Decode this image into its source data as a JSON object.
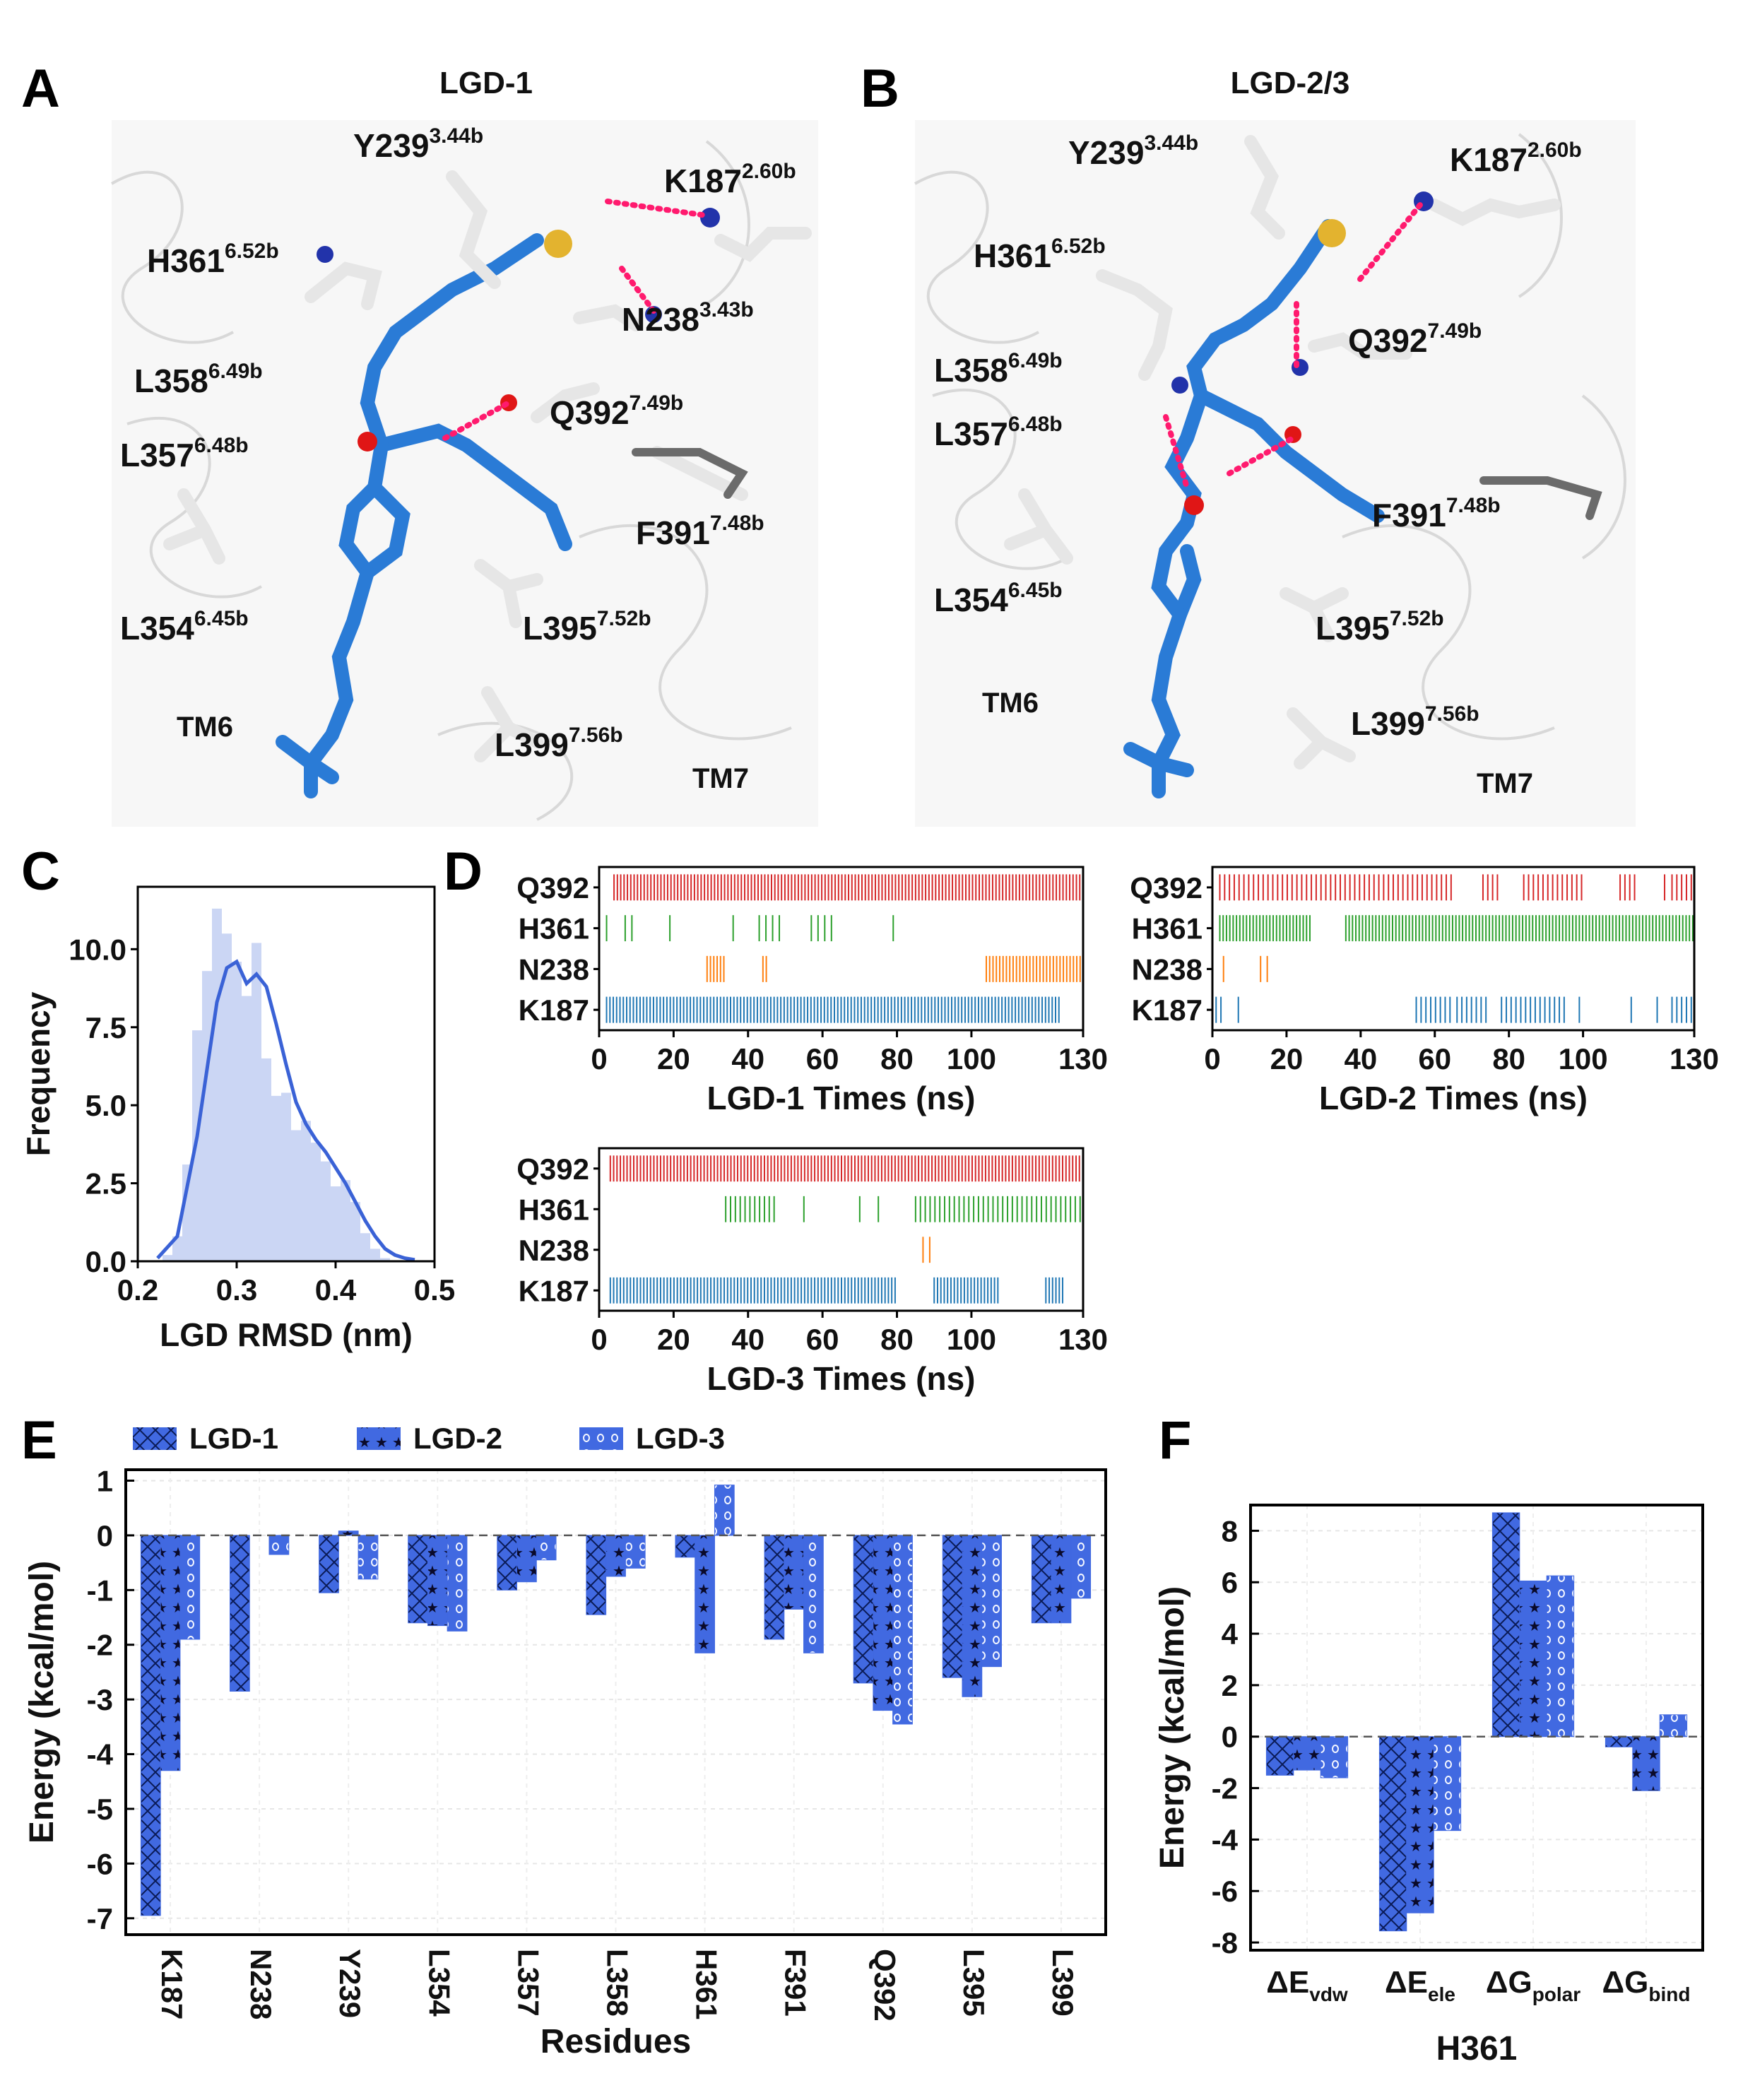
{
  "panels": {
    "A": {
      "letter": "A",
      "title": "LGD-1",
      "residues": [
        {
          "name": "Y239",
          "sup": "3.44b"
        },
        {
          "name": "K187",
          "sup": "2.60b"
        },
        {
          "name": "H361",
          "sup": "6.52b"
        },
        {
          "name": "N238",
          "sup": "3.43b"
        },
        {
          "name": "L358",
          "sup": "6.49b"
        },
        {
          "name": "L357",
          "sup": "6.48b"
        },
        {
          "name": "Q392",
          "sup": "7.49b"
        },
        {
          "name": "F391",
          "sup": "7.48b"
        },
        {
          "name": "L354",
          "sup": "6.45b"
        },
        {
          "name": "L395",
          "sup": "7.52b"
        },
        {
          "name": "L399",
          "sup": "7.56b"
        }
      ],
      "helices": [
        "TM6",
        "TM7"
      ]
    },
    "B": {
      "letter": "B",
      "title": "LGD-2/3",
      "residues": [
        {
          "name": "Y239",
          "sup": "3.44b"
        },
        {
          "name": "K187",
          "sup": "2.60b"
        },
        {
          "name": "H361",
          "sup": "6.52b"
        },
        {
          "name": "Q392",
          "sup": "7.49b"
        },
        {
          "name": "L358",
          "sup": "6.49b"
        },
        {
          "name": "L357",
          "sup": "6.48b"
        },
        {
          "name": "F391",
          "sup": "7.48b"
        },
        {
          "name": "L354",
          "sup": "6.45b"
        },
        {
          "name": "L395",
          "sup": "7.52b"
        },
        {
          "name": "L399",
          "sup": "7.56b"
        }
      ],
      "helices": [
        "TM6",
        "TM7"
      ]
    },
    "C": {
      "letter": "C"
    },
    "D": {
      "letter": "D"
    },
    "E": {
      "letter": "E"
    },
    "F": {
      "letter": "F"
    }
  },
  "colors": {
    "accent": "#4169e1",
    "kde": "#3a62d6",
    "hist": "#c5d1f3",
    "q392": "#d62728",
    "h361": "#2ca02c",
    "n238": "#ff7f0e",
    "k187": "#1f77b4",
    "ligand": "#2a7bd6",
    "sidechain": "#d9d9d9"
  },
  "chart_data": [
    {
      "id": "C",
      "type": "bar",
      "title": "",
      "xlabel": "LGD RMSD (nm)",
      "ylabel": "Frequency",
      "xlim": [
        0.2,
        0.5
      ],
      "ylim": [
        0,
        12.0
      ],
      "xticks": [
        "0.2",
        "0.3",
        "0.4",
        "0.5"
      ],
      "xtick_values": [
        0.2,
        0.3,
        0.4,
        0.5
      ],
      "yticks": [
        "0.0",
        "2.5",
        "5.0",
        "7.5",
        "10.0"
      ],
      "ytick_values": [
        0.0,
        2.5,
        5.0,
        7.5,
        10.0
      ],
      "hist_bins": [
        0.23,
        0.24,
        0.25,
        0.26,
        0.27,
        0.28,
        0.29,
        0.3,
        0.31,
        0.32,
        0.33,
        0.34,
        0.35,
        0.36,
        0.37,
        0.38,
        0.39,
        0.4,
        0.41,
        0.42,
        0.43,
        0.44,
        0.45
      ],
      "hist_values": [
        0.2,
        0.8,
        3.1,
        7.4,
        9.3,
        11.3,
        10.5,
        9.6,
        8.5,
        10.2,
        6.5,
        5.3,
        5.4,
        4.2,
        4.5,
        3.8,
        3.2,
        2.4,
        2.6,
        1.9,
        0.9,
        0.4,
        0.1
      ],
      "kde_x": [
        0.22,
        0.24,
        0.26,
        0.28,
        0.29,
        0.3,
        0.31,
        0.32,
        0.33,
        0.34,
        0.35,
        0.36,
        0.37,
        0.38,
        0.39,
        0.4,
        0.41,
        0.42,
        0.43,
        0.44,
        0.45,
        0.46,
        0.47,
        0.48
      ],
      "kde_y": [
        0.1,
        0.8,
        4.0,
        8.3,
        9.4,
        9.6,
        8.9,
        9.2,
        8.8,
        7.6,
        6.3,
        5.1,
        4.4,
        3.9,
        3.5,
        3.0,
        2.5,
        1.9,
        1.3,
        0.8,
        0.4,
        0.2,
        0.1,
        0.05
      ]
    },
    {
      "id": "D1",
      "type": "scatter",
      "title": "",
      "xlabel": "LGD-1 Times (ns)",
      "ylabel": "",
      "xlim": [
        0,
        130
      ],
      "xticks": [
        "0",
        "20",
        "40",
        "60",
        "80",
        "100",
        "130"
      ],
      "xtick_values": [
        0,
        20,
        40,
        60,
        80,
        100,
        130
      ],
      "rows": [
        "Q392",
        "H361",
        "N238",
        "K187"
      ],
      "series": [
        {
          "name": "Q392",
          "values": [
            [
              4,
              130
            ]
          ],
          "density": "dense"
        },
        {
          "name": "H361",
          "values": [
            [
              2,
              3
            ],
            [
              7,
              10
            ],
            [
              19,
              20
            ],
            [
              36,
              37
            ],
            [
              43,
              49
            ],
            [
              57,
              64
            ],
            [
              79,
              80
            ]
          ],
          "density": "sparse"
        },
        {
          "name": "N238",
          "values": [
            [
              29,
              34
            ],
            [
              44,
              45
            ],
            [
              104,
              130
            ]
          ],
          "density": "dense"
        },
        {
          "name": "K187",
          "values": [
            [
              2,
              124
            ]
          ],
          "density": "dense"
        }
      ]
    },
    {
      "id": "D2",
      "type": "scatter",
      "title": "",
      "xlabel": "LGD-2 Times (ns)",
      "ylabel": "",
      "xlim": [
        0,
        130
      ],
      "xticks": [
        "0",
        "20",
        "40",
        "60",
        "80",
        "100",
        "130"
      ],
      "xtick_values": [
        0,
        20,
        40,
        60,
        80,
        100,
        130
      ],
      "rows": [
        "Q392",
        "H361",
        "N238",
        "K187"
      ],
      "series": [
        {
          "name": "Q392",
          "values": [
            [
              2,
              65
            ],
            [
              73,
              77
            ],
            [
              84,
              100
            ],
            [
              110,
              115
            ],
            [
              122,
              123
            ],
            [
              124,
              130
            ]
          ],
          "density": "medium"
        },
        {
          "name": "H361",
          "values": [
            [
              2,
              27
            ],
            [
              36,
              130
            ]
          ],
          "density": "dense"
        },
        {
          "name": "N238",
          "values": [
            [
              3,
              4
            ],
            [
              13,
              15
            ]
          ],
          "density": "sparse"
        },
        {
          "name": "K187",
          "values": [
            [
              1,
              3
            ],
            [
              7,
              8
            ],
            [
              55,
              65
            ],
            [
              66,
              75
            ],
            [
              78,
              95
            ],
            [
              99,
              100
            ],
            [
              113,
              114
            ],
            [
              120,
              121
            ],
            [
              124,
              130
            ]
          ],
          "density": "medium"
        }
      ]
    },
    {
      "id": "D3",
      "type": "scatter",
      "title": "",
      "xlabel": "LGD-3 Times (ns)",
      "ylabel": "",
      "xlim": [
        0,
        130
      ],
      "xticks": [
        "0",
        "20",
        "40",
        "60",
        "80",
        "100",
        "130"
      ],
      "xtick_values": [
        0,
        20,
        40,
        60,
        80,
        100,
        130
      ],
      "rows": [
        "Q392",
        "H361",
        "N238",
        "K187"
      ],
      "series": [
        {
          "name": "Q392",
          "values": [
            [
              3,
              130
            ]
          ],
          "density": "dense"
        },
        {
          "name": "H361",
          "values": [
            [
              34,
              48
            ],
            [
              55,
              56
            ],
            [
              70,
              71
            ],
            [
              75,
              76
            ],
            [
              85,
              130
            ]
          ],
          "density": "medium"
        },
        {
          "name": "N238",
          "values": [
            [
              87,
              89
            ]
          ],
          "density": "sparse"
        },
        {
          "name": "K187",
          "values": [
            [
              3,
              80
            ],
            [
              90,
              108
            ],
            [
              120,
              125
            ]
          ],
          "density": "dense"
        }
      ]
    },
    {
      "id": "E",
      "type": "bar",
      "title": "",
      "xlabel": "Residues",
      "ylabel": "Energy (kcal/mol)",
      "ylim": [
        -7.3,
        1.2
      ],
      "yticks": [
        "1",
        "0",
        "-1",
        "-2",
        "-3",
        "-4",
        "-5",
        "-6",
        "-7"
      ],
      "ytick_values": [
        1,
        0,
        -1,
        -2,
        -3,
        -4,
        -5,
        -6,
        -7
      ],
      "categories": [
        "K187",
        "N238",
        "Y239",
        "L354",
        "L357",
        "L358",
        "H361",
        "F391",
        "Q392",
        "L395",
        "L399"
      ],
      "legend": [
        "LGD-1",
        "LGD-2",
        "LGD-3"
      ],
      "series": [
        {
          "name": "LGD-1",
          "pattern": "x",
          "values": [
            -6.95,
            -2.85,
            -1.05,
            -1.6,
            -1.0,
            -1.45,
            -0.4,
            -1.9,
            -2.7,
            -2.6,
            -1.6
          ]
        },
        {
          "name": "LGD-2",
          "pattern": "star",
          "values": [
            -4.3,
            0.0,
            0.08,
            -1.65,
            -0.85,
            -0.75,
            -2.15,
            -1.35,
            -3.2,
            -2.95,
            -1.6
          ]
        },
        {
          "name": "LGD-3",
          "pattern": "circle",
          "values": [
            -1.9,
            -0.35,
            -0.8,
            -1.75,
            -0.45,
            -0.6,
            0.92,
            -2.15,
            -3.45,
            -2.4,
            -1.15
          ]
        }
      ]
    },
    {
      "id": "F",
      "type": "bar",
      "title": "",
      "xlabel": "H361",
      "ylabel": "Energy (kcal/mol)",
      "ylim": [
        -8.3,
        9.0
      ],
      "yticks": [
        "8",
        "6",
        "4",
        "2",
        "0",
        "-2",
        "-4",
        "-6",
        "-8"
      ],
      "ytick_values": [
        8,
        6,
        4,
        2,
        0,
        -2,
        -4,
        -6,
        -8
      ],
      "categories": [
        "ΔE",
        "ΔE",
        "ΔG",
        "ΔG"
      ],
      "category_subscripts": [
        "vdw",
        "ele",
        "polar",
        "bind"
      ],
      "series": [
        {
          "name": "LGD-1",
          "pattern": "x",
          "values": [
            -1.5,
            -7.55,
            8.7,
            -0.4
          ]
        },
        {
          "name": "LGD-2",
          "pattern": "star",
          "values": [
            -1.3,
            -6.85,
            6.05,
            -2.1
          ]
        },
        {
          "name": "LGD-3",
          "pattern": "circle",
          "values": [
            -1.6,
            -3.65,
            6.25,
            0.85
          ]
        }
      ]
    }
  ]
}
